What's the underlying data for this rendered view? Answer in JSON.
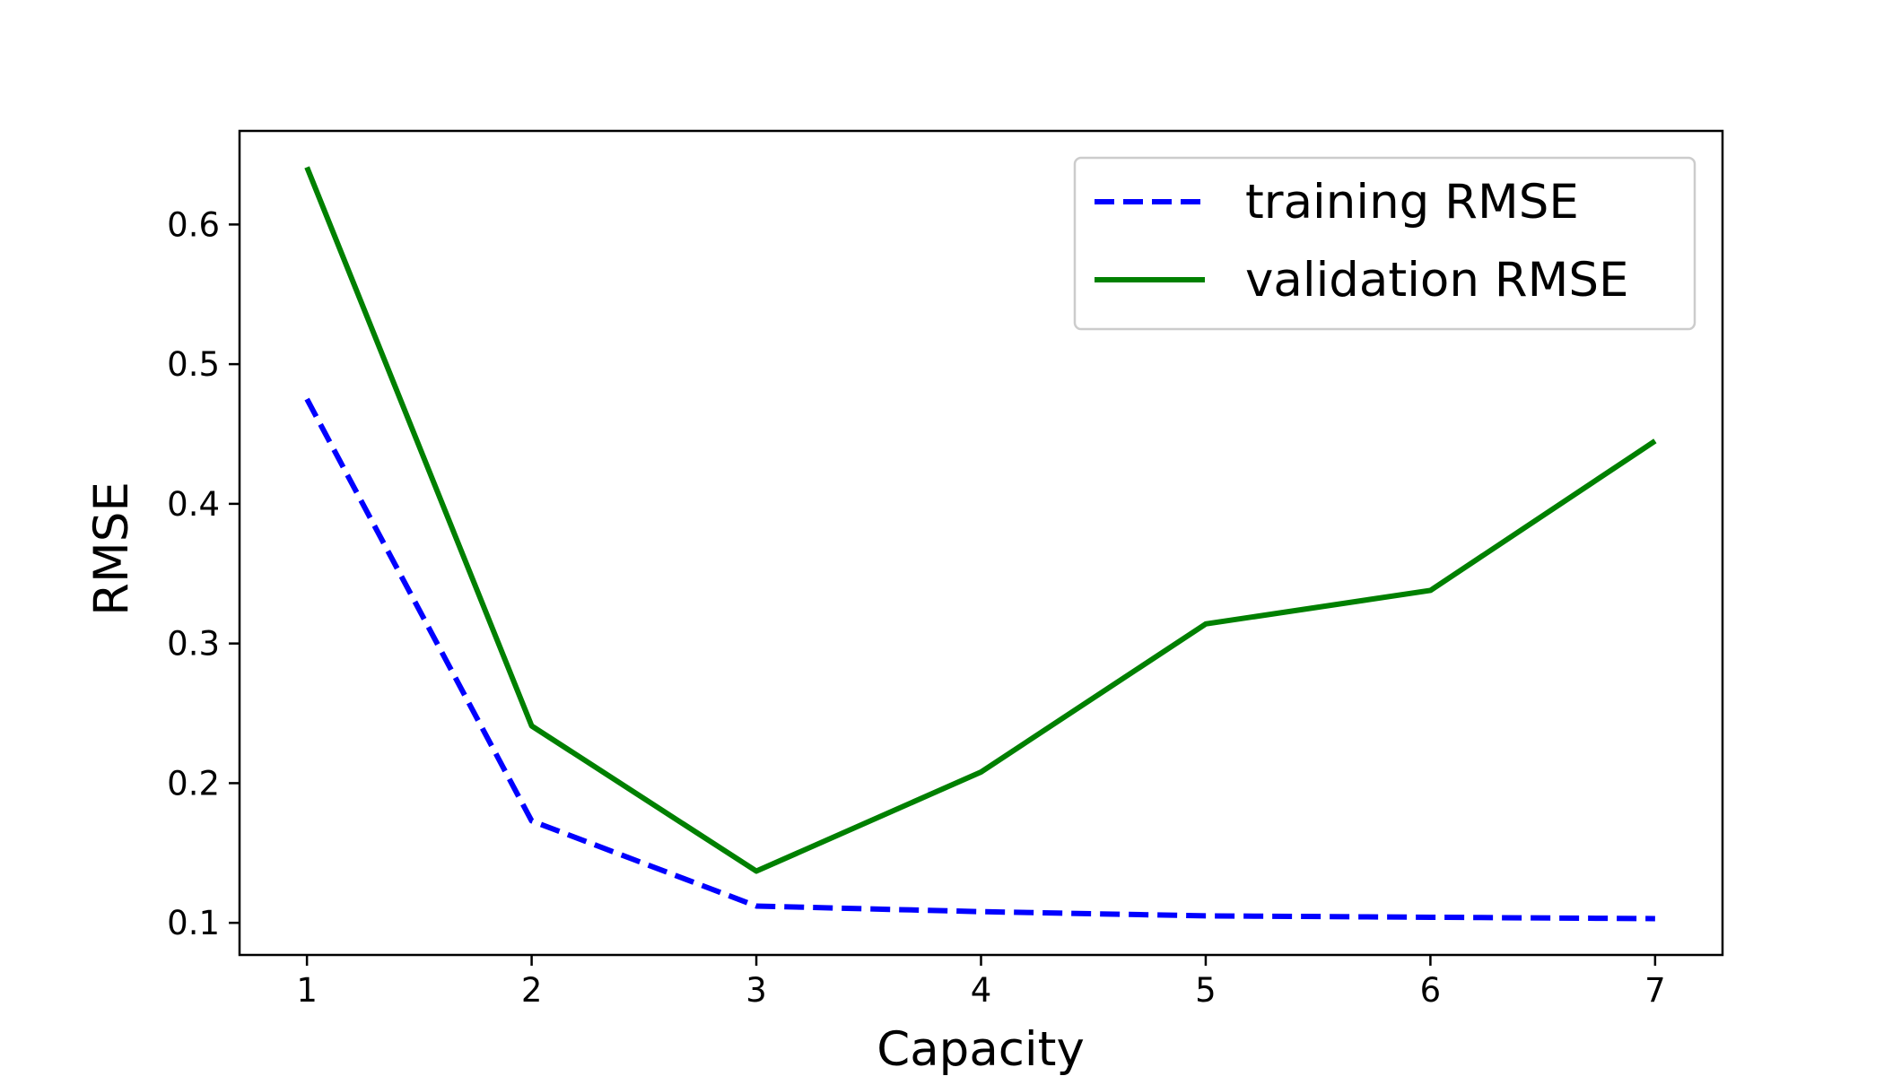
{
  "chart_data": {
    "type": "line",
    "title": "",
    "xlabel": "Capacity",
    "ylabel": "RMSE",
    "x": [
      1,
      2,
      3,
      4,
      5,
      6,
      7
    ],
    "x_ticks": [
      "1",
      "2",
      "3",
      "4",
      "5",
      "6",
      "7"
    ],
    "y_ticks": [
      "0.1",
      "0.2",
      "0.3",
      "0.4",
      "0.5",
      "0.6"
    ],
    "xlim": [
      0.7,
      7.3
    ],
    "ylim": [
      0.077,
      0.667
    ],
    "grid": false,
    "legend_position": "top-right",
    "series": [
      {
        "name": "training RMSE",
        "values": [
          0.475,
          0.173,
          0.112,
          0.108,
          0.105,
          0.104,
          0.103
        ],
        "color": "#0000ff",
        "style": "dashed"
      },
      {
        "name": "validation RMSE",
        "values": [
          0.641,
          0.241,
          0.137,
          0.208,
          0.314,
          0.338,
          0.445
        ],
        "color": "#008000",
        "style": "solid"
      }
    ]
  }
}
